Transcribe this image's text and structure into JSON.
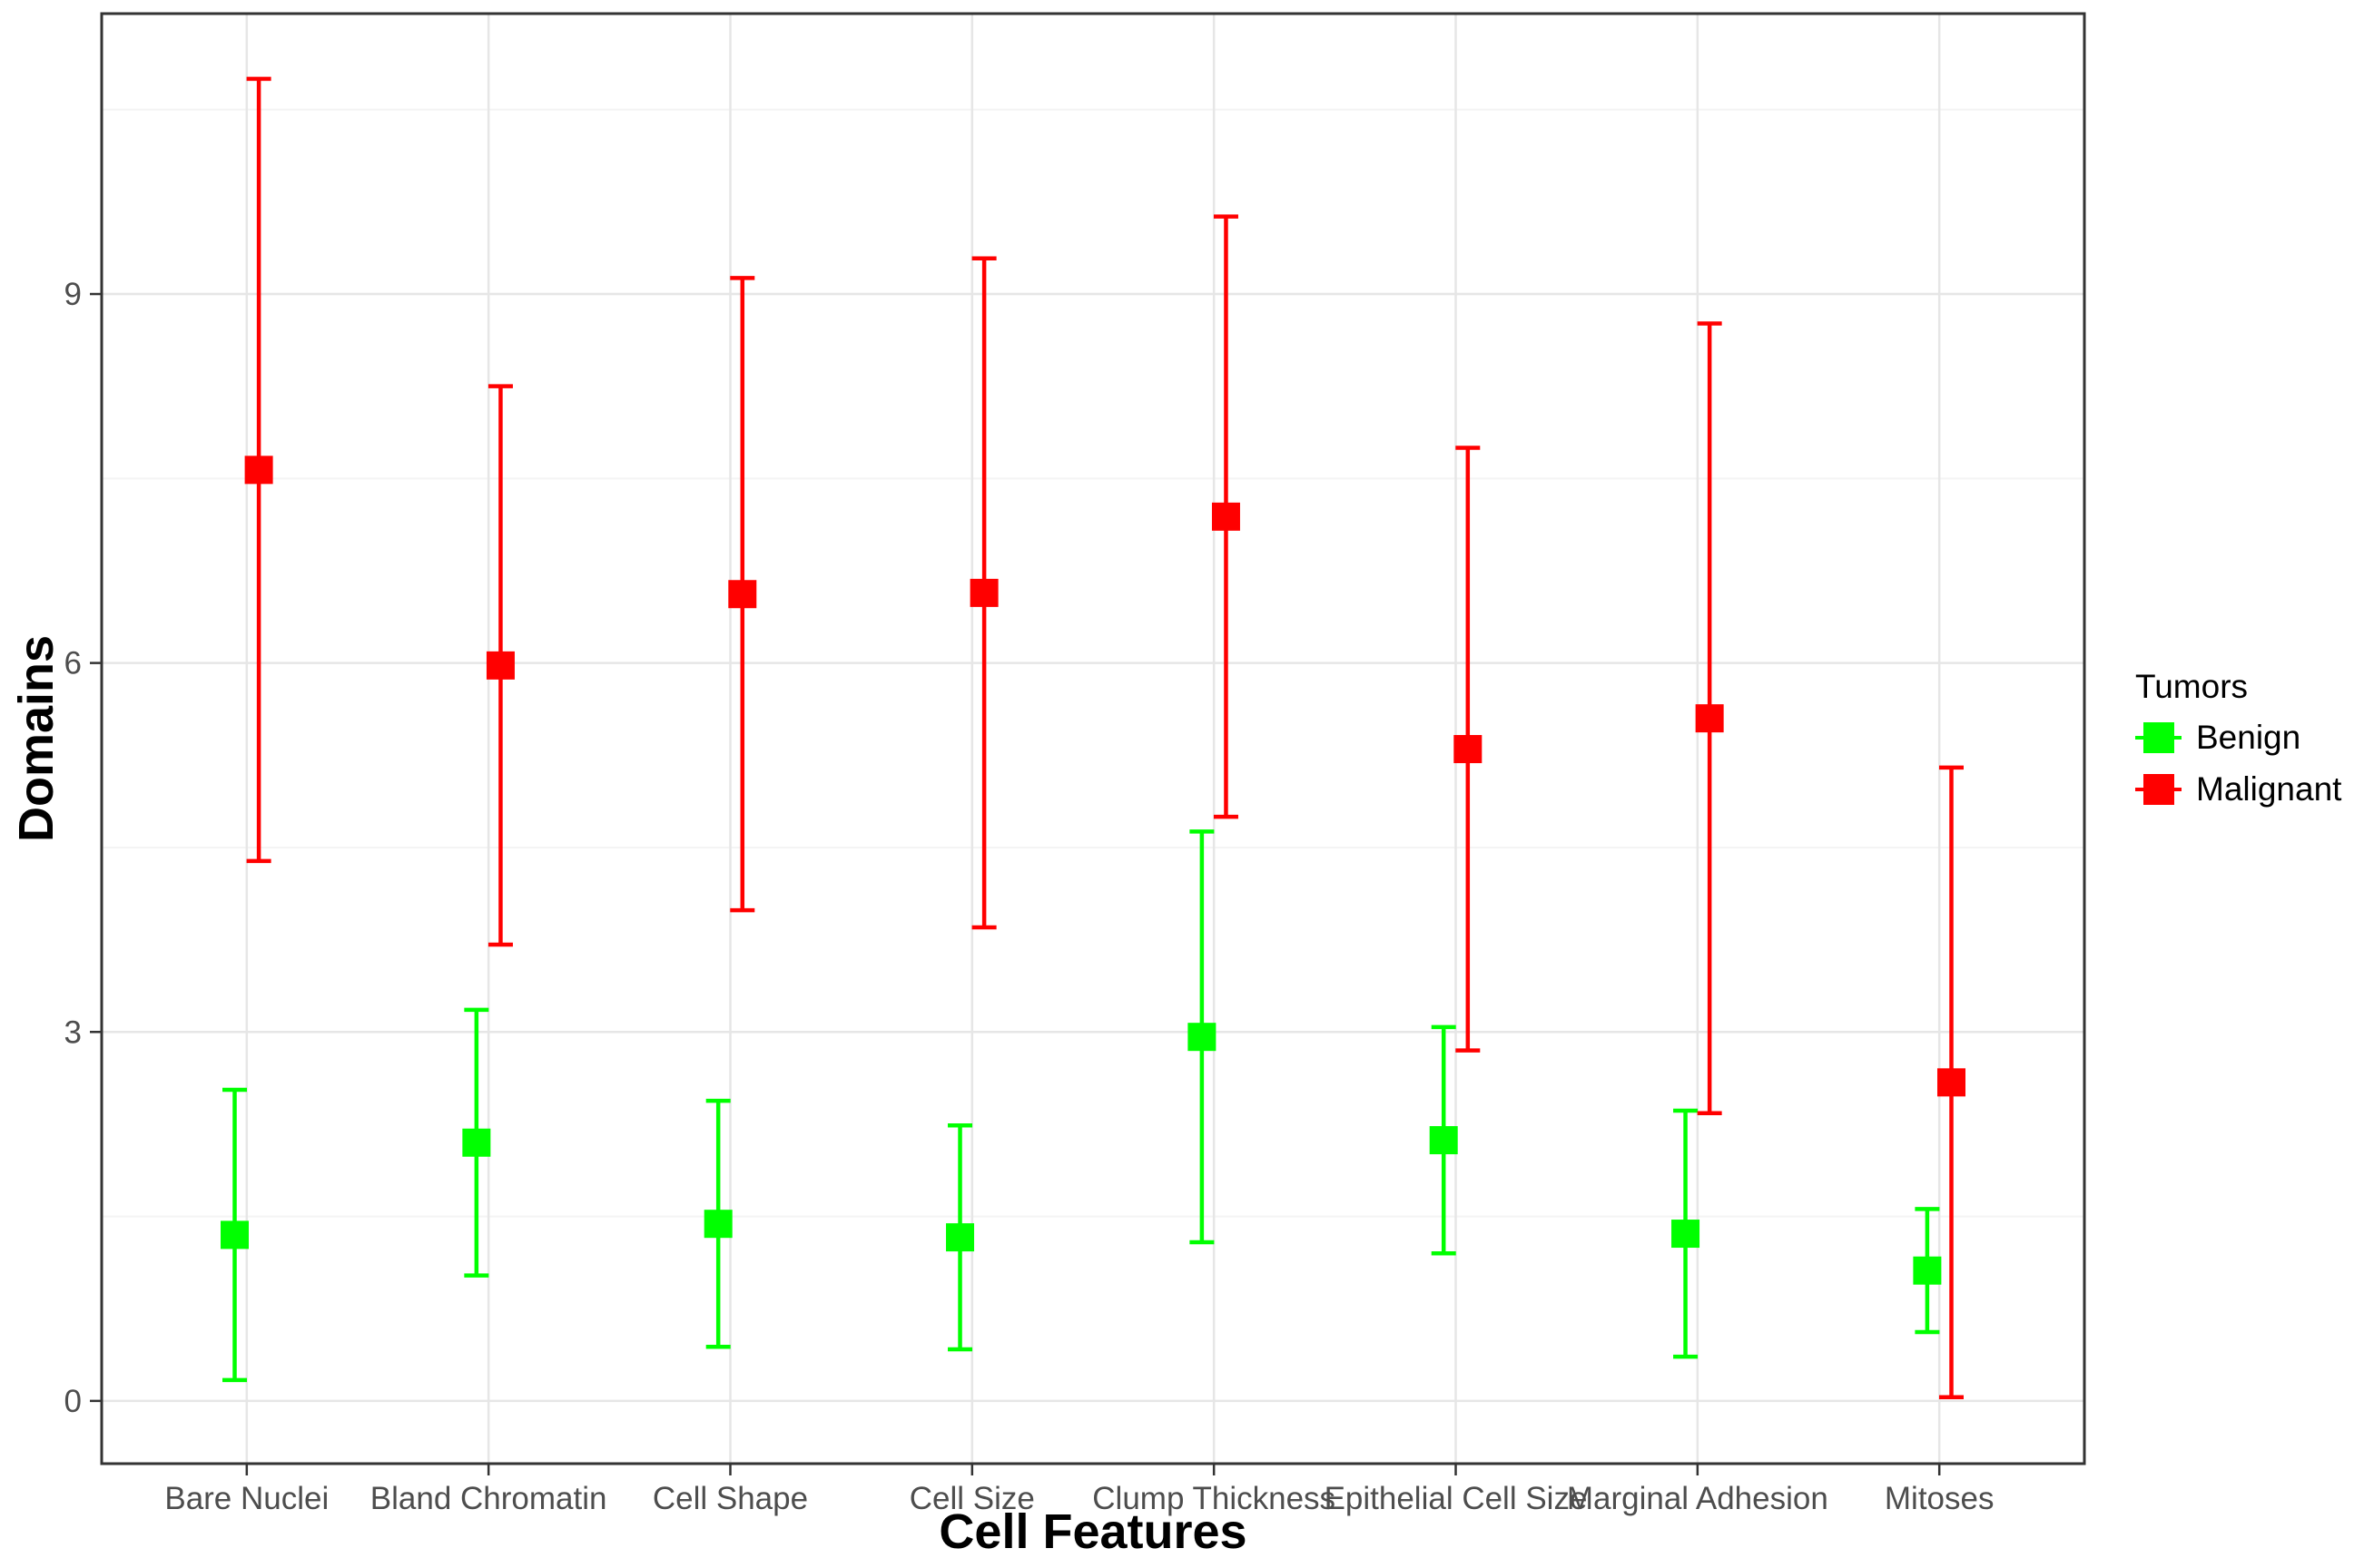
{
  "figure": {
    "background": "#FFFFFF"
  },
  "chart_data": {
    "type": "errorbar",
    "title": "",
    "xlabel": "Cell Features",
    "ylabel": "Domains",
    "categories": [
      "Bare Nuclei",
      "Bland Chromatin",
      "Cell Shape",
      "Cell Size",
      "Clump Thickness",
      "Epithelial Cell Size",
      "Marginal Adhesion",
      "Mitoses"
    ],
    "series": [
      {
        "name": "Benign",
        "color": "#00FF00",
        "marker": "square",
        "means": [
          1.35,
          2.1,
          1.44,
          1.33,
          2.96,
          2.12,
          1.36,
          1.06
        ],
        "lower": [
          0.17,
          1.02,
          0.44,
          0.42,
          1.29,
          1.2,
          0.36,
          0.56
        ],
        "upper": [
          2.53,
          3.18,
          2.44,
          2.24,
          4.63,
          3.04,
          2.36,
          1.56
        ]
      },
      {
        "name": "Malignant",
        "color": "#FF0000",
        "marker": "square",
        "means": [
          7.57,
          5.98,
          6.56,
          6.57,
          7.19,
          5.3,
          5.55,
          2.59
        ],
        "lower": [
          4.39,
          3.71,
          3.99,
          3.85,
          4.75,
          2.85,
          2.34,
          0.03
        ],
        "upper": [
          10.75,
          8.25,
          9.13,
          9.29,
          9.63,
          7.75,
          8.76,
          5.15
        ]
      }
    ],
    "error_bars": "mean ± standard deviation",
    "y_major_ticks": [
      0,
      3,
      6,
      9
    ],
    "y_minor_gridlines": [
      1.5,
      4.5,
      7.5,
      10.5
    ],
    "ylim": [
      -0.51,
      11.28
    ],
    "grid": true,
    "legend": {
      "title": "Tumors",
      "position": "right",
      "entries": [
        "Benign",
        "Malignant"
      ]
    },
    "colors": {
      "grid_major": "#E6E6E6",
      "grid_minor": "#F4F4F4",
      "panel_border": "#333333",
      "tick_mark": "#333333",
      "tick_text": "#4D4D4D",
      "axis_title": "#000000"
    }
  }
}
